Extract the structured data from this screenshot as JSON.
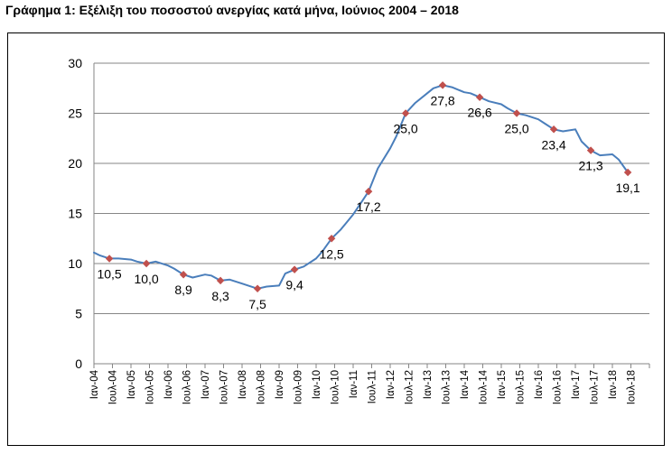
{
  "chart_data": {
    "type": "line",
    "title": "Γράφημα 1: Εξέλιξη του ποσοστού ανεργίας κατά μήνα, Ιούνιος 2004 – 2018",
    "xlabel": "",
    "ylabel": "",
    "ylim": [
      0,
      30
    ],
    "yticks": [
      0,
      5,
      10,
      15,
      20,
      25,
      30
    ],
    "grid": true,
    "legend": "none",
    "line_color": "#4a7ebb",
    "marker_color": "#c0504d",
    "x_tick_labels": [
      "Ιαν-04",
      "Ιουλ-04",
      "Ιαν-05",
      "Ιουλ-05",
      "Ιαν-06",
      "Ιουλ-06",
      "Ιαν-07",
      "Ιουλ-07",
      "Ιαν-08",
      "Ιουλ-08",
      "Ιαν-09",
      "Ιουλ-09",
      "Ιαν-10",
      "Ιουλ-10",
      "Ιαν-11",
      "Ιουλ-11",
      "Ιαν-12",
      "Ιουλ-12",
      "Ιαν-13",
      "Ιουλ-13",
      "Ιαν-14",
      "Ιουλ-14",
      "Ιαν-15",
      "Ιουλ-15",
      "Ιαν-16",
      "Ιουλ-16",
      "Ιαν-17",
      "Ιουλ-17",
      "Ιαν-18",
      "Ιουλ-18"
    ],
    "series": [
      {
        "x": [
          "2004-01",
          "2004-03",
          "2004-06",
          "2004-09",
          "2005-01",
          "2005-03",
          "2005-06",
          "2005-09",
          "2006-01",
          "2006-03",
          "2006-06",
          "2006-09",
          "2007-01",
          "2007-03",
          "2007-06",
          "2007-09",
          "2008-01",
          "2008-03",
          "2008-06",
          "2008-09",
          "2009-01",
          "2009-03",
          "2009-06",
          "2009-09",
          "2010-01",
          "2010-03",
          "2010-06",
          "2010-09",
          "2011-01",
          "2011-03",
          "2011-06",
          "2011-09",
          "2012-01",
          "2012-03",
          "2012-06",
          "2012-09",
          "2013-01",
          "2013-03",
          "2013-06",
          "2013-09",
          "2014-01",
          "2014-03",
          "2014-06",
          "2014-09",
          "2015-01",
          "2015-03",
          "2015-06",
          "2015-09",
          "2016-01",
          "2016-03",
          "2016-06",
          "2016-09",
          "2017-01",
          "2017-03",
          "2017-06",
          "2017-09",
          "2018-01",
          "2018-03",
          "2018-06"
        ],
        "values": [
          11.1,
          10.8,
          10.5,
          10.5,
          10.4,
          10.2,
          10.0,
          10.2,
          9.8,
          9.5,
          8.9,
          8.6,
          8.9,
          8.8,
          8.3,
          8.4,
          8.0,
          7.8,
          7.5,
          7.7,
          7.8,
          9.0,
          9.4,
          9.7,
          10.5,
          11.2,
          12.5,
          13.4,
          14.9,
          15.8,
          17.2,
          19.5,
          21.5,
          22.7,
          25.0,
          26.0,
          27.0,
          27.5,
          27.8,
          27.6,
          27.1,
          27.0,
          26.6,
          26.2,
          25.9,
          25.5,
          25.0,
          24.8,
          24.4,
          24.0,
          23.4,
          23.2,
          23.4,
          22.2,
          21.3,
          20.8,
          20.9,
          20.4,
          19.1
        ]
      }
    ],
    "markers": [
      {
        "x": "2004-06",
        "value": 10.5,
        "label": "10,5"
      },
      {
        "x": "2005-06",
        "value": 10.0,
        "label": "10,0"
      },
      {
        "x": "2006-06",
        "value": 8.9,
        "label": "8,9"
      },
      {
        "x": "2007-06",
        "value": 8.3,
        "label": "8,3"
      },
      {
        "x": "2008-06",
        "value": 7.5,
        "label": "7,5"
      },
      {
        "x": "2009-06",
        "value": 9.4,
        "label": "9,4"
      },
      {
        "x": "2010-06",
        "value": 12.5,
        "label": "12,5"
      },
      {
        "x": "2011-06",
        "value": 17.2,
        "label": "17,2"
      },
      {
        "x": "2012-06",
        "value": 25.0,
        "label": "25,0"
      },
      {
        "x": "2013-06",
        "value": 27.8,
        "label": "27,8"
      },
      {
        "x": "2014-06",
        "value": 26.6,
        "label": "26,6"
      },
      {
        "x": "2015-06",
        "value": 25.0,
        "label": "25,0"
      },
      {
        "x": "2016-06",
        "value": 23.4,
        "label": "23,4"
      },
      {
        "x": "2017-06",
        "value": 21.3,
        "label": "21,3"
      },
      {
        "x": "2018-06",
        "value": 19.1,
        "label": "19,1"
      }
    ]
  }
}
